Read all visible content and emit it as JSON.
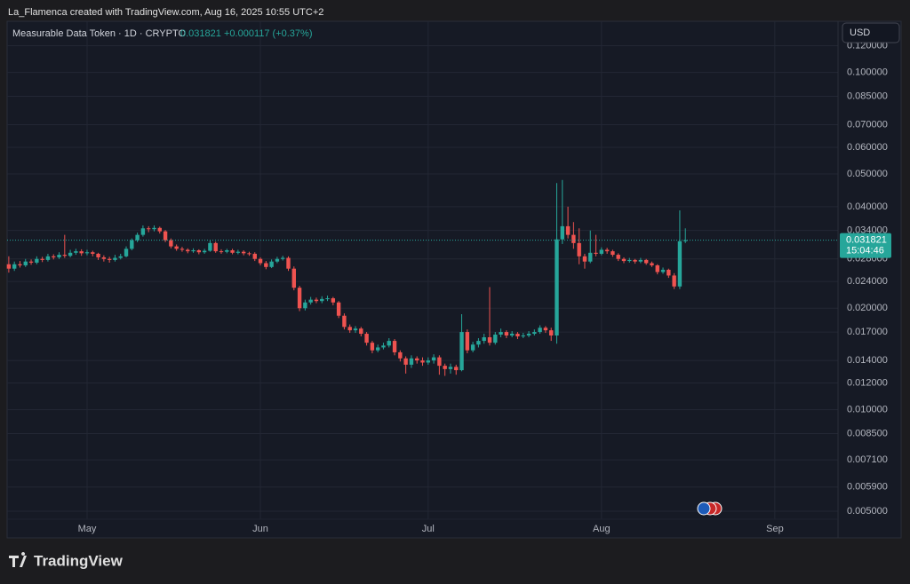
{
  "header": {
    "attribution": "La_Flamenca created with TradingView.com, Aug 16, 2025 10:55 UTC+2",
    "currency_button": "USD",
    "logo": "TradingView"
  },
  "chart_data": {
    "type": "candlestick",
    "symbol": "Measurable Data Token · 1D · CRYPTO",
    "last_price": 0.031821,
    "change": "+0.000117 (+0.37%)",
    "countdown": "15:04:46",
    "log_scale": true,
    "grid": true,
    "ylim": [
      0.00417,
      0.1418
    ],
    "yticks": [
      {
        "value": 0.12,
        "label": "0.120000"
      },
      {
        "value": 0.1,
        "label": "0.100000"
      },
      {
        "value": 0.085,
        "label": "0.085000"
      },
      {
        "value": 0.07,
        "label": "0.070000"
      },
      {
        "value": 0.06,
        "label": "0.060000"
      },
      {
        "value": 0.05,
        "label": "0.050000"
      },
      {
        "value": 0.04,
        "label": "0.040000"
      },
      {
        "value": 0.034,
        "label": "0.034000"
      },
      {
        "value": 0.028,
        "label": "0.028000"
      },
      {
        "value": 0.024,
        "label": "0.024000"
      },
      {
        "value": 0.02,
        "label": "0.020000"
      },
      {
        "value": 0.017,
        "label": "0.017000"
      },
      {
        "value": 0.014,
        "label": "0.014000"
      },
      {
        "value": 0.012,
        "label": "0.012000"
      },
      {
        "value": 0.01,
        "label": "0.010000"
      },
      {
        "value": 0.0085,
        "label": "0.008500"
      },
      {
        "value": 0.0071,
        "label": "0.007100"
      },
      {
        "value": 0.0059,
        "label": "0.005900"
      },
      {
        "value": 0.005,
        "label": "0.005000"
      }
    ],
    "xlim": [
      -0.3,
      148.3
    ],
    "xticks": [
      {
        "value": 14,
        "label": "May"
      },
      {
        "value": 45,
        "label": "Jun"
      },
      {
        "value": 75,
        "label": "Jul"
      },
      {
        "value": 106,
        "label": "Aug"
      },
      {
        "value": 137,
        "label": "Sep"
      }
    ],
    "up_color": "#26a69a",
    "down_color": "#ef5350",
    "series": [
      {
        "ohlc": [
          [
            0.027,
            0.0285,
            0.0255,
            0.0262
          ],
          [
            0.0262,
            0.0275,
            0.0258,
            0.027
          ],
          [
            0.027,
            0.0276,
            0.0264,
            0.0268
          ],
          [
            0.0268,
            0.028,
            0.0265,
            0.0275
          ],
          [
            0.0275,
            0.0279,
            0.0269,
            0.0273
          ],
          [
            0.0273,
            0.0285,
            0.027,
            0.028
          ],
          [
            0.028,
            0.0284,
            0.0274,
            0.0278
          ],
          [
            0.0278,
            0.029,
            0.0275,
            0.0285
          ],
          [
            0.0285,
            0.0289,
            0.0279,
            0.0283
          ],
          [
            0.0283,
            0.0293,
            0.028,
            0.0288
          ],
          [
            0.0288,
            0.033,
            0.0282,
            0.0286
          ],
          [
            0.0286,
            0.0298,
            0.0283,
            0.0292
          ],
          [
            0.0292,
            0.03,
            0.0288,
            0.0295
          ],
          [
            0.0295,
            0.0299,
            0.0286,
            0.0291
          ],
          [
            0.0291,
            0.0298,
            0.0287,
            0.0293
          ],
          [
            0.0293,
            0.0296,
            0.0285,
            0.029
          ],
          [
            0.029,
            0.0292,
            0.0278,
            0.0283
          ],
          [
            0.0283,
            0.0287,
            0.0275,
            0.028
          ],
          [
            0.028,
            0.0284,
            0.0273,
            0.0278
          ],
          [
            0.0278,
            0.0288,
            0.0275,
            0.0282
          ],
          [
            0.0282,
            0.029,
            0.0279,
            0.0285
          ],
          [
            0.0285,
            0.0305,
            0.0283,
            0.03
          ],
          [
            0.03,
            0.0322,
            0.0297,
            0.0318
          ],
          [
            0.0318,
            0.0335,
            0.0314,
            0.033
          ],
          [
            0.033,
            0.0352,
            0.0326,
            0.0345
          ],
          [
            0.0345,
            0.035,
            0.0336,
            0.0343
          ],
          [
            0.0343,
            0.0352,
            0.0338,
            0.0346
          ],
          [
            0.0346,
            0.0349,
            0.0333,
            0.0338
          ],
          [
            0.0338,
            0.0341,
            0.0314,
            0.0318
          ],
          [
            0.0318,
            0.0322,
            0.0301,
            0.0305
          ],
          [
            0.0305,
            0.0309,
            0.0296,
            0.03
          ],
          [
            0.03,
            0.0304,
            0.0294,
            0.0298
          ],
          [
            0.0298,
            0.0301,
            0.0291,
            0.0295
          ],
          [
            0.0295,
            0.0301,
            0.0292,
            0.0297
          ],
          [
            0.0297,
            0.0299,
            0.0289,
            0.0293
          ],
          [
            0.0293,
            0.03,
            0.029,
            0.0296
          ],
          [
            0.0296,
            0.0318,
            0.0294,
            0.0312
          ],
          [
            0.0312,
            0.0315,
            0.0292,
            0.0295
          ],
          [
            0.0295,
            0.0299,
            0.029,
            0.0294
          ],
          [
            0.0294,
            0.03,
            0.0291,
            0.0297
          ],
          [
            0.0297,
            0.03,
            0.0289,
            0.0292
          ],
          [
            0.0292,
            0.0298,
            0.0289,
            0.0294
          ],
          [
            0.0294,
            0.0297,
            0.0287,
            0.0291
          ],
          [
            0.0291,
            0.0294,
            0.0286,
            0.029
          ],
          [
            0.029,
            0.0293,
            0.0276,
            0.028
          ],
          [
            0.028,
            0.0283,
            0.0268,
            0.0272
          ],
          [
            0.0272,
            0.0276,
            0.0261,
            0.0265
          ],
          [
            0.0265,
            0.0279,
            0.0263,
            0.0275
          ],
          [
            0.0275,
            0.0284,
            0.0272,
            0.028
          ],
          [
            0.028,
            0.0286,
            0.0277,
            0.0282
          ],
          [
            0.0282,
            0.0285,
            0.0258,
            0.0262
          ],
          [
            0.0262,
            0.0266,
            0.0226,
            0.023
          ],
          [
            0.023,
            0.0233,
            0.0196,
            0.02
          ],
          [
            0.02,
            0.0212,
            0.0197,
            0.0208
          ],
          [
            0.0208,
            0.0216,
            0.0205,
            0.0212
          ],
          [
            0.0212,
            0.0215,
            0.0207,
            0.021
          ],
          [
            0.021,
            0.0217,
            0.0207,
            0.0213
          ],
          [
            0.0213,
            0.0218,
            0.021,
            0.0214
          ],
          [
            0.0214,
            0.0216,
            0.0204,
            0.0208
          ],
          [
            0.0208,
            0.021,
            0.0187,
            0.019
          ],
          [
            0.019,
            0.0193,
            0.0173,
            0.0176
          ],
          [
            0.0176,
            0.0179,
            0.0169,
            0.0172
          ],
          [
            0.0172,
            0.0177,
            0.0169,
            0.0174
          ],
          [
            0.0174,
            0.0176,
            0.0165,
            0.0168
          ],
          [
            0.0168,
            0.017,
            0.0155,
            0.0158
          ],
          [
            0.0158,
            0.016,
            0.0147,
            0.015
          ],
          [
            0.015,
            0.0156,
            0.0148,
            0.0153
          ],
          [
            0.0153,
            0.0158,
            0.0151,
            0.0155
          ],
          [
            0.0155,
            0.0163,
            0.0153,
            0.016
          ],
          [
            0.016,
            0.0162,
            0.0145,
            0.0148
          ],
          [
            0.0148,
            0.015,
            0.0139,
            0.0142
          ],
          [
            0.0142,
            0.0144,
            0.0128,
            0.0136
          ],
          [
            0.0136,
            0.0145,
            0.0133,
            0.0142
          ],
          [
            0.0142,
            0.0144,
            0.0137,
            0.014
          ],
          [
            0.014,
            0.0143,
            0.0135,
            0.0138
          ],
          [
            0.0138,
            0.0143,
            0.0136,
            0.014
          ],
          [
            0.014,
            0.0146,
            0.0137,
            0.0143
          ],
          [
            0.0143,
            0.0145,
            0.0127,
            0.0135
          ],
          [
            0.0135,
            0.0137,
            0.0126,
            0.0132
          ],
          [
            0.0132,
            0.0137,
            0.0128,
            0.0134
          ],
          [
            0.0134,
            0.0136,
            0.0127,
            0.0131
          ],
          [
            0.0131,
            0.0192,
            0.013,
            0.017
          ],
          [
            0.017,
            0.0173,
            0.0147,
            0.015
          ],
          [
            0.015,
            0.0159,
            0.0148,
            0.0156
          ],
          [
            0.0156,
            0.0163,
            0.0153,
            0.016
          ],
          [
            0.016,
            0.0168,
            0.0157,
            0.0164
          ],
          [
            0.0164,
            0.0231,
            0.0155,
            0.0158
          ],
          [
            0.0158,
            0.017,
            0.0156,
            0.0167
          ],
          [
            0.0167,
            0.0174,
            0.0164,
            0.017
          ],
          [
            0.017,
            0.0172,
            0.0163,
            0.0166
          ],
          [
            0.0166,
            0.0171,
            0.0164,
            0.0168
          ],
          [
            0.0168,
            0.017,
            0.0162,
            0.0165
          ],
          [
            0.0165,
            0.0169,
            0.0163,
            0.0166
          ],
          [
            0.0166,
            0.0171,
            0.0164,
            0.0168
          ],
          [
            0.0168,
            0.0173,
            0.0166,
            0.017
          ],
          [
            0.017,
            0.0178,
            0.0168,
            0.0175
          ],
          [
            0.0175,
            0.0177,
            0.0169,
            0.0172
          ],
          [
            0.0172,
            0.0175,
            0.016,
            0.0166
          ],
          [
            0.0166,
            0.047,
            0.0157,
            0.032
          ],
          [
            0.032,
            0.048,
            0.031,
            0.035
          ],
          [
            0.035,
            0.04,
            0.0322,
            0.033
          ],
          [
            0.033,
            0.036,
            0.03,
            0.0312
          ],
          [
            0.0312,
            0.0345,
            0.027,
            0.0285
          ],
          [
            0.0285,
            0.029,
            0.0262,
            0.0275
          ],
          [
            0.0275,
            0.034,
            0.0272,
            0.0292
          ],
          [
            0.0292,
            0.033,
            0.0285,
            0.029
          ],
          [
            0.029,
            0.0303,
            0.0287,
            0.0298
          ],
          [
            0.0298,
            0.0302,
            0.029,
            0.0295
          ],
          [
            0.0295,
            0.0298,
            0.0284,
            0.0288
          ],
          [
            0.0288,
            0.0291,
            0.0276,
            0.028
          ],
          [
            0.028,
            0.0283,
            0.0272,
            0.0276
          ],
          [
            0.0276,
            0.0282,
            0.0273,
            0.0278
          ],
          [
            0.0278,
            0.028,
            0.0271,
            0.0275
          ],
          [
            0.0275,
            0.0282,
            0.0272,
            0.0278
          ],
          [
            0.0278,
            0.028,
            0.0269,
            0.0272
          ],
          [
            0.0272,
            0.0275,
            0.0265,
            0.0268
          ],
          [
            0.0268,
            0.027,
            0.0252,
            0.0256
          ],
          [
            0.0256,
            0.0264,
            0.0253,
            0.026
          ],
          [
            0.026,
            0.0262,
            0.0246,
            0.025
          ],
          [
            0.025,
            0.0254,
            0.0228,
            0.0232
          ],
          [
            0.0232,
            0.039,
            0.0228,
            0.0316
          ],
          [
            0.0316,
            0.0345,
            0.0312,
            0.031821
          ]
        ]
      }
    ]
  }
}
